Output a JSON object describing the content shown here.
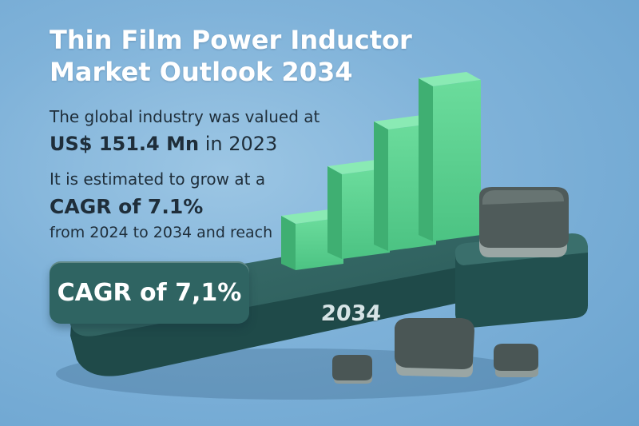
{
  "title": {
    "line1": "Thin Film Power Inductor",
    "line2": "Market Outlook 2034"
  },
  "valued": {
    "intro": "The global industry was valued at",
    "value": "US$ 151.4 Mn",
    "year_text": "in 2023"
  },
  "growth": {
    "intro": "It is estimated to grow at a",
    "cagr": "CAGR of 7.1%",
    "period": "from 2024 to 2034 and reach"
  },
  "badge": {
    "label": "CAGR of 7,1%"
  },
  "platform": {
    "year_label": "2034"
  },
  "colors": {
    "background": "#7fb2d9",
    "platform": "#2e5f5e",
    "bars": "#5ccf8e",
    "inductor": "#4f5b5a",
    "text_dark": "#1f2e3a",
    "title": "#ffffff"
  },
  "bars_relative_heights": [
    1,
    1.6,
    2.2,
    2.7
  ]
}
